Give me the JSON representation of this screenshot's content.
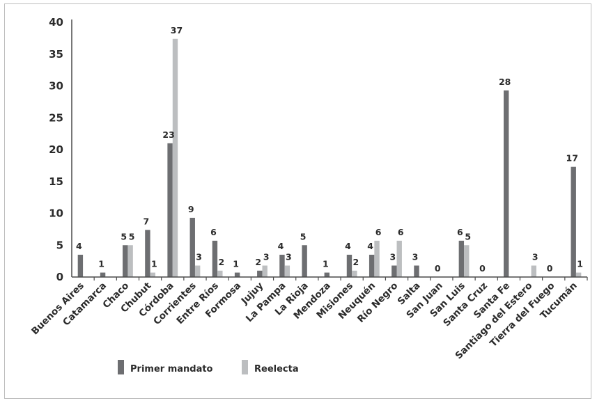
{
  "chart_data": {
    "type": "bar",
    "categories": [
      "Buenos Aires",
      "Catamarca",
      "Chaco",
      "Chubut",
      "Córdoba",
      "Corrientes",
      "Entre Ríos",
      "Formosa",
      "Jujuy",
      "La Pampa",
      "La Rioja",
      "Mendoza",
      "Misiones",
      "Neuquén",
      "Río Negro",
      "Salta",
      "San Juan",
      "San Luis",
      "Santa Cruz",
      "Santa Fe",
      "Santiago del Estero",
      "Tierra del Fuego",
      "Tucumán"
    ],
    "series": [
      {
        "name": "Primer mandato",
        "color": "#6d6e71",
        "values": [
          4,
          1,
          5,
          7,
          23,
          9,
          6,
          1,
          2,
          4,
          5,
          1,
          4,
          4,
          3,
          3,
          0,
          6,
          0,
          28,
          0,
          0,
          17
        ],
        "labels": [
          "4",
          "1",
          "5",
          "7",
          "23",
          "9",
          "6",
          "1",
          "2",
          "4",
          "5",
          "1",
          "4",
          "4",
          "3",
          "3",
          "0",
          "6",
          "0",
          "28",
          "",
          "0",
          "17"
        ],
        "heights": [
          3.5,
          0.7,
          5,
          7.4,
          21,
          9.3,
          5.7,
          0.7,
          1,
          3.5,
          5,
          0.7,
          3.5,
          3.5,
          1.8,
          1.8,
          0,
          5.7,
          0,
          29.3,
          0,
          0,
          17.3
        ]
      },
      {
        "name": "Reelecta",
        "color": "#bcbec0",
        "values": [
          0,
          0,
          5,
          1,
          37,
          3,
          2,
          0,
          3,
          3,
          0,
          0,
          2,
          6,
          6,
          0,
          0,
          5,
          0,
          0,
          3,
          0,
          1
        ],
        "labels": [
          "",
          "",
          "5",
          "1",
          "37",
          "3",
          "2",
          "",
          "3",
          "3",
          "",
          "",
          "2",
          "6",
          "6",
          "",
          "",
          "5",
          "",
          "",
          "3",
          "",
          "1"
        ],
        "heights": [
          0,
          0,
          5,
          0.7,
          37.4,
          1.8,
          1,
          0,
          1.8,
          1.8,
          0,
          0,
          1,
          5.7,
          5.7,
          0,
          0,
          5,
          0,
          0,
          1.8,
          0,
          0.7
        ]
      }
    ],
    "ylim": [
      0,
      40
    ],
    "yticks": [
      "0",
      "5",
      "10",
      "15",
      "20",
      "25",
      "30",
      "35",
      "40"
    ],
    "legend": "bottom-center",
    "grid": false
  }
}
